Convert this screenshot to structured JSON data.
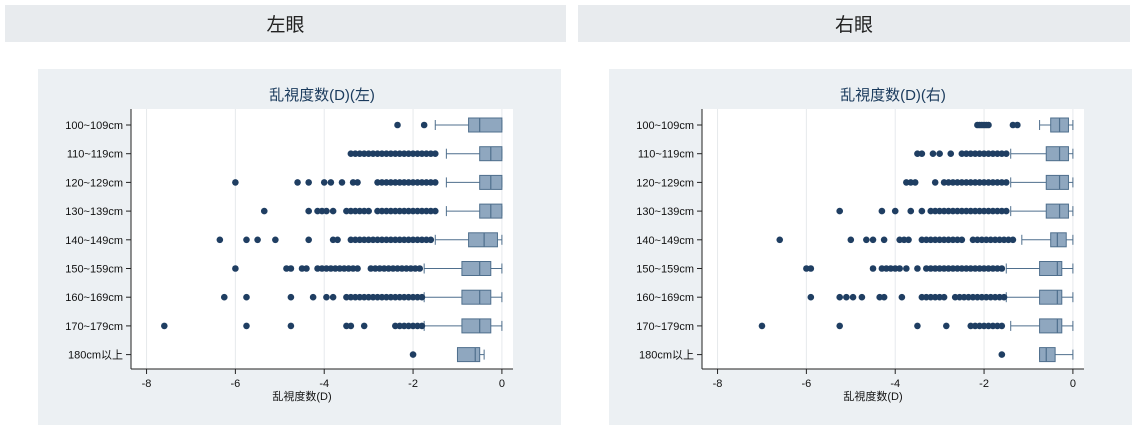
{
  "headers": {
    "left": "左眼",
    "right": "右眼"
  },
  "colors": {
    "box_fill": "#8fa7bf",
    "box_stroke": "#4f6f8d",
    "dot": "#1f3e62",
    "grid": "#e6e9ec"
  },
  "chart_data": [
    {
      "type": "box",
      "orientation": "horizontal",
      "title": "乱視度数(D)(左)",
      "xlabel": "乱視度数(D)",
      "xlim": [
        -8.35,
        0.25
      ],
      "xticks": [
        -8,
        -6,
        -4,
        -2,
        0
      ],
      "categories": [
        "100~109cm",
        "110~119cm",
        "120~129cm",
        "130~139cm",
        "140~149cm",
        "150~159cm",
        "160~169cm",
        "170~179cm",
        "180cm以上"
      ],
      "boxes": [
        {
          "q1": -0.75,
          "median": -0.5,
          "q3": -0.0,
          "whisker_low": -1.5,
          "whisker_high": 0.0,
          "outliers": [
            -2.35,
            -1.75
          ]
        },
        {
          "q1": -0.5,
          "median": -0.25,
          "q3": -0.0,
          "whisker_low": -1.25,
          "whisker_high": 0.0,
          "outliers": [
            -3.4,
            -3.3,
            -3.2,
            -3.1,
            -3.0,
            -2.9,
            -2.8,
            -2.7,
            -2.6,
            -2.5,
            -2.4,
            -2.3,
            -2.2,
            -2.1,
            -2.0,
            -1.9,
            -1.8,
            -1.7,
            -1.6,
            -1.5
          ]
        },
        {
          "q1": -0.5,
          "median": -0.25,
          "q3": -0.0,
          "whisker_low": -1.25,
          "whisker_high": 0.0,
          "outliers": [
            -6.0,
            -4.6,
            -4.35,
            -4.0,
            -3.85,
            -3.6,
            -3.35,
            -3.25,
            -2.8,
            -2.7,
            -2.6,
            -2.5,
            -2.4,
            -2.3,
            -2.2,
            -2.1,
            -2.0,
            -1.9,
            -1.8,
            -1.7,
            -1.6,
            -1.5
          ]
        },
        {
          "q1": -0.5,
          "median": -0.25,
          "q3": -0.0,
          "whisker_low": -1.25,
          "whisker_high": 0.0,
          "outliers": [
            -5.35,
            -4.35,
            -4.15,
            -4.05,
            -3.95,
            -3.8,
            -3.5,
            -3.4,
            -3.3,
            -3.2,
            -3.1,
            -3.0,
            -2.8,
            -2.7,
            -2.6,
            -2.5,
            -2.4,
            -2.3,
            -2.2,
            -2.1,
            -2.0,
            -1.9,
            -1.8,
            -1.7,
            -1.6,
            -1.5
          ]
        },
        {
          "q1": -0.75,
          "median": -0.4,
          "q3": -0.1,
          "whisker_low": -1.5,
          "whisker_high": 0.0,
          "outliers": [
            -6.35,
            -5.75,
            -5.5,
            -5.1,
            -4.35,
            -3.8,
            -3.7,
            -3.4,
            -3.3,
            -3.2,
            -3.1,
            -3.0,
            -2.9,
            -2.8,
            -2.7,
            -2.6,
            -2.5,
            -2.4,
            -2.3,
            -2.2,
            -2.1,
            -2.0,
            -1.9,
            -1.8,
            -1.7,
            -1.6
          ]
        },
        {
          "q1": -0.9,
          "median": -0.5,
          "q3": -0.25,
          "whisker_low": -1.75,
          "whisker_high": 0.0,
          "outliers": [
            -6.0,
            -4.85,
            -4.75,
            -4.5,
            -4.4,
            -4.15,
            -4.05,
            -3.95,
            -3.85,
            -3.75,
            -3.65,
            -3.55,
            -3.45,
            -3.35,
            -3.25,
            -2.95,
            -2.85,
            -2.75,
            -2.65,
            -2.55,
            -2.45,
            -2.35,
            -2.25,
            -2.15,
            -2.05,
            -1.95,
            -1.85
          ]
        },
        {
          "q1": -0.9,
          "median": -0.5,
          "q3": -0.25,
          "whisker_low": -1.75,
          "whisker_high": 0.0,
          "outliers": [
            -6.25,
            -5.75,
            -4.75,
            -4.25,
            -3.95,
            -3.8,
            -3.5,
            -3.4,
            -3.3,
            -3.2,
            -3.1,
            -3.0,
            -2.9,
            -2.8,
            -2.7,
            -2.6,
            -2.5,
            -2.4,
            -2.3,
            -2.2,
            -2.1,
            -2.0,
            -1.9,
            -1.8
          ]
        },
        {
          "q1": -0.9,
          "median": -0.5,
          "q3": -0.25,
          "whisker_low": -1.75,
          "whisker_high": 0.0,
          "outliers": [
            -7.6,
            -5.75,
            -4.75,
            -3.5,
            -3.4,
            -3.1,
            -2.4,
            -2.3,
            -2.2,
            -2.1,
            -2.0,
            -1.9,
            -1.8
          ]
        },
        {
          "q1": -1.0,
          "median": -0.6,
          "q3": -0.5,
          "whisker_low": -1.0,
          "whisker_high": -0.4,
          "outliers": [
            -2.0
          ]
        }
      ]
    },
    {
      "type": "box",
      "orientation": "horizontal",
      "title": "乱視度数(D)(右)",
      "xlabel": "乱視度数(D)",
      "xlim": [
        -8.35,
        0.25
      ],
      "xticks": [
        -8,
        -6,
        -4,
        -2,
        0
      ],
      "categories": [
        "100~109cm",
        "110~119cm",
        "120~129cm",
        "130~139cm",
        "140~149cm",
        "150~159cm",
        "160~169cm",
        "170~179cm",
        "180cm以上"
      ],
      "boxes": [
        {
          "q1": -0.5,
          "median": -0.3,
          "q3": -0.1,
          "whisker_low": -0.75,
          "whisker_high": 0.0,
          "outliers": [
            -2.15,
            -2.1,
            -2.05,
            -2.0,
            -1.95,
            -1.9,
            -1.35,
            -1.25
          ]
        },
        {
          "q1": -0.6,
          "median": -0.3,
          "q3": -0.1,
          "whisker_low": -1.4,
          "whisker_high": 0.0,
          "outliers": [
            -3.5,
            -3.4,
            -3.15,
            -3.0,
            -2.75,
            -2.5,
            -2.4,
            -2.3,
            -2.2,
            -2.1,
            -2.0,
            -1.9,
            -1.8,
            -1.7,
            -1.6,
            -1.5
          ]
        },
        {
          "q1": -0.6,
          "median": -0.3,
          "q3": -0.1,
          "whisker_low": -1.4,
          "whisker_high": 0.0,
          "outliers": [
            -3.75,
            -3.65,
            -3.55,
            -3.1,
            -2.9,
            -2.8,
            -2.7,
            -2.6,
            -2.5,
            -2.4,
            -2.3,
            -2.2,
            -2.1,
            -2.0,
            -1.9,
            -1.8,
            -1.7,
            -1.6,
            -1.5
          ]
        },
        {
          "q1": -0.6,
          "median": -0.3,
          "q3": -0.1,
          "whisker_low": -1.4,
          "whisker_high": 0.0,
          "outliers": [
            -5.25,
            -4.3,
            -4.0,
            -3.65,
            -3.4,
            -3.2,
            -3.1,
            -3.0,
            -2.9,
            -2.8,
            -2.7,
            -2.6,
            -2.5,
            -2.4,
            -2.3,
            -2.2,
            -2.1,
            -2.0,
            -1.9,
            -1.8,
            -1.7,
            -1.6,
            -1.5
          ]
        },
        {
          "q1": -0.5,
          "median": -0.35,
          "q3": -0.15,
          "whisker_low": -1.15,
          "whisker_high": 0.0,
          "outliers": [
            -6.6,
            -5.0,
            -4.65,
            -4.5,
            -4.25,
            -3.9,
            -3.8,
            -3.7,
            -3.4,
            -3.3,
            -3.2,
            -3.1,
            -3.0,
            -2.9,
            -2.8,
            -2.7,
            -2.6,
            -2.5,
            -2.25,
            -2.15,
            -2.05,
            -1.95,
            -1.85,
            -1.75,
            -1.65,
            -1.55,
            -1.45,
            -1.35
          ]
        },
        {
          "q1": -0.75,
          "median": -0.35,
          "q3": -0.25,
          "whisker_low": -1.5,
          "whisker_high": 0.0,
          "outliers": [
            -6.0,
            -5.9,
            -4.5,
            -4.3,
            -4.2,
            -4.1,
            -4.0,
            -3.9,
            -3.75,
            -3.5,
            -3.3,
            -3.2,
            -3.1,
            -3.0,
            -2.9,
            -2.8,
            -2.7,
            -2.6,
            -2.5,
            -2.4,
            -2.3,
            -2.2,
            -2.1,
            -2.0,
            -1.9,
            -1.8,
            -1.7,
            -1.6
          ]
        },
        {
          "q1": -0.75,
          "median": -0.35,
          "q3": -0.25,
          "whisker_low": -1.5,
          "whisker_high": 0.0,
          "outliers": [
            -5.9,
            -5.25,
            -5.1,
            -4.95,
            -4.75,
            -4.35,
            -4.25,
            -3.85,
            -3.4,
            -3.3,
            -3.2,
            -3.1,
            -3.0,
            -2.9,
            -2.65,
            -2.55,
            -2.45,
            -2.35,
            -2.25,
            -2.15,
            -2.05,
            -1.95,
            -1.85,
            -1.75,
            -1.65,
            -1.55
          ]
        },
        {
          "q1": -0.75,
          "median": -0.35,
          "q3": -0.25,
          "whisker_low": -1.4,
          "whisker_high": 0.0,
          "outliers": [
            -7.0,
            -5.25,
            -3.5,
            -2.85,
            -2.3,
            -2.2,
            -2.1,
            -2.0,
            -1.9,
            -1.8,
            -1.7,
            -1.6
          ]
        },
        {
          "q1": -0.75,
          "median": -0.6,
          "q3": -0.4,
          "whisker_low": -0.75,
          "whisker_high": 0.0,
          "outliers": [
            -1.6
          ]
        }
      ]
    }
  ]
}
